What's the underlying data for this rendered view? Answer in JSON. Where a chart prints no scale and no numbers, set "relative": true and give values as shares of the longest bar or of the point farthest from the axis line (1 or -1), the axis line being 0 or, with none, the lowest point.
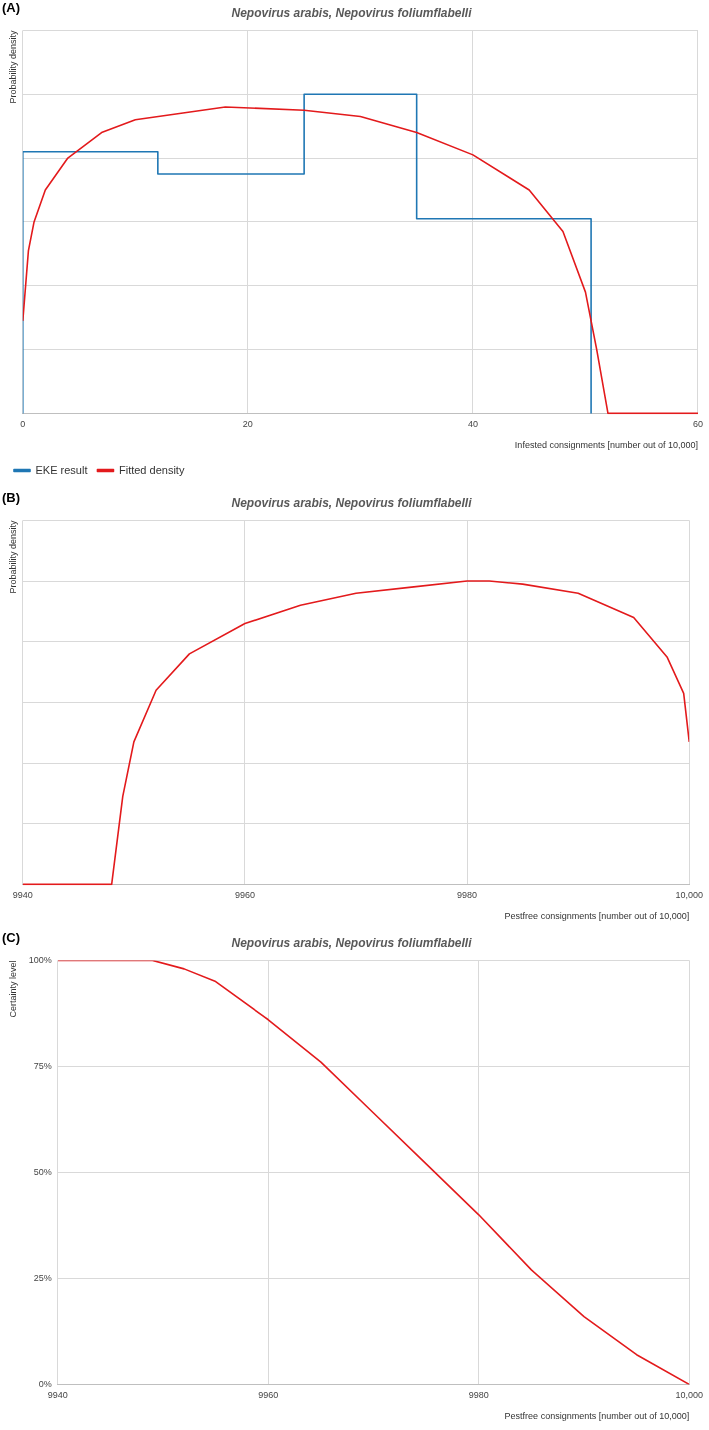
{
  "chart_data": [
    {
      "type": "line",
      "title": "Nepovirus arabis, Nepovirus foliumflabelli",
      "annotations": [
        "(A)"
      ],
      "xlabel": "Infested consignments [number out of 10,000]",
      "ylabel": "Probability density",
      "relative": true,
      "tick_labels": "x",
      "grid": true,
      "legend": "bottom left",
      "marker": "none",
      "xlim": [
        0,
        60
      ],
      "xticks": [
        0,
        20,
        40,
        60
      ],
      "series": [
        {
          "name": "EKE result",
          "type": "step",
          "color": "#1f77b4",
          "x": [
            0,
            0,
            12,
            25,
            35,
            50.5,
            50.5
          ],
          "values": [
            0,
            0.82,
            0.75,
            1,
            0.61,
            0.61,
            0
          ]
        },
        {
          "name": "Fitted density",
          "type": "line",
          "color": "#e31a1c",
          "x": [
            0,
            0.5,
            1,
            2,
            4,
            7,
            10,
            18,
            25,
            30,
            35,
            40,
            45,
            48,
            50,
            51,
            52,
            60
          ],
          "values": [
            0.29,
            0.51,
            0.6,
            0.7,
            0.8,
            0.88,
            0.92,
            0.96,
            0.95,
            0.93,
            0.88,
            0.81,
            0.7,
            0.57,
            0.38,
            0.2,
            0,
            0
          ]
        }
      ]
    },
    {
      "type": "line",
      "title": "Nepovirus arabis, Nepovirus foliumflabelli",
      "annotations": [
        "(B)"
      ],
      "xlabel": "Pestfree consignments [number out of 10,000]",
      "ylabel": "Probability density",
      "relative": true,
      "tick_labels": "x",
      "grid": true,
      "marker": "none",
      "xlim": [
        9940,
        10000
      ],
      "xticks": [
        9940,
        9960,
        9980,
        {
          "value": 10000,
          "label": "10,000"
        }
      ],
      "series": [
        {
          "color": "#e31a1c",
          "x": [
            9940,
            9948,
            9949,
            9950,
            9952,
            9955,
            9960,
            9965,
            9970,
            9975,
            9980,
            9982,
            9985,
            9990,
            9995,
            9998,
            9999.5,
            10000
          ],
          "values": [
            0,
            0,
            0.29,
            0.47,
            0.64,
            0.76,
            0.86,
            0.92,
            0.96,
            0.98,
            1,
            1,
            0.99,
            0.96,
            0.88,
            0.75,
            0.63,
            0.47
          ]
        }
      ]
    },
    {
      "type": "line",
      "title": "Nepovirus arabis, Nepovirus foliumflabelli",
      "annotations": [
        "(C)"
      ],
      "xlabel": "Pestfree consignments [number out of 10,000]",
      "ylabel": "Certainty level",
      "grid": true,
      "marker": "none",
      "xlim": [
        9940,
        10000
      ],
      "xticks": [
        9940,
        9960,
        9980,
        {
          "value": 10000,
          "label": "10,000"
        }
      ],
      "ylim": [
        0,
        100
      ],
      "yticks": [
        {
          "value": 0,
          "label": "0%"
        },
        {
          "value": 25,
          "label": "25%"
        },
        {
          "value": 50,
          "label": "50%"
        },
        {
          "value": 75,
          "label": "75%"
        },
        {
          "value": 100,
          "label": "100%"
        }
      ],
      "series": [
        {
          "color": "#e31a1c",
          "x": [
            9940,
            9949,
            9952,
            9955,
            9960,
            9965,
            9970,
            9975,
            9980,
            9985,
            9990,
            9995,
            10000
          ],
          "values": [
            100,
            100,
            98,
            95,
            86,
            76,
            64,
            52,
            40,
            27,
            16,
            7,
            0
          ]
        }
      ]
    }
  ]
}
